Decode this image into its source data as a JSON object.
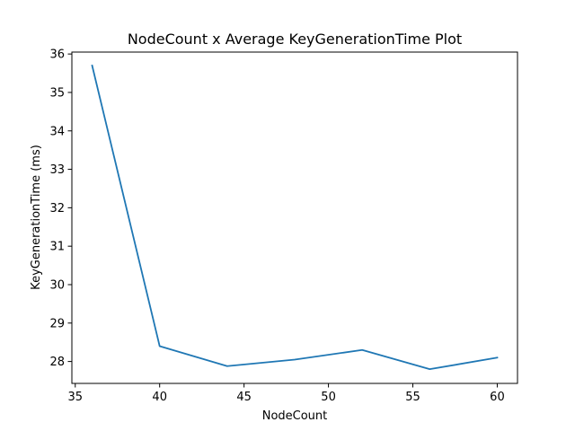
{
  "chart_data": {
    "type": "line",
    "title": "NodeCount x Average KeyGenerationTime Plot",
    "xlabel": "NodeCount",
    "ylabel": "KeyGenerationTime (ms)",
    "xlim": [
      34.8,
      61.2
    ],
    "ylim": [
      27.43,
      36.05
    ],
    "xticks": [
      35,
      40,
      45,
      50,
      55,
      60
    ],
    "yticks": [
      28,
      29,
      30,
      31,
      32,
      33,
      34,
      35,
      36
    ],
    "grid": false,
    "series": [
      {
        "x": [
          36,
          40,
          44,
          48,
          52,
          56,
          60
        ],
        "y": [
          35.7,
          28.4,
          27.88,
          28.05,
          28.3,
          27.8,
          28.1
        ],
        "color": "#1f77b4"
      }
    ]
  }
}
